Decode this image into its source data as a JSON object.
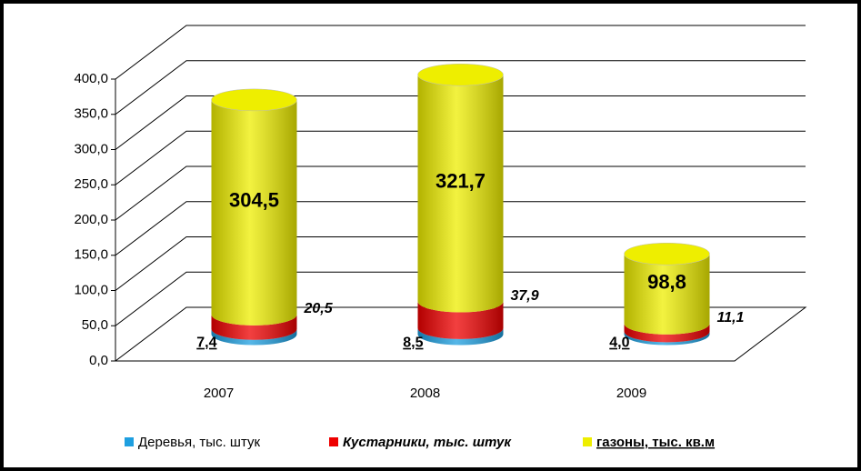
{
  "chart_data": {
    "type": "bar",
    "categories": [
      "2007",
      "2008",
      "2009"
    ],
    "series": [
      {
        "name": "Деревья, тыс. штук",
        "color": "#1e9fe0",
        "values": [
          7.4,
          8.5,
          4.0
        ],
        "value_labels": [
          "7,4",
          "8,5",
          "4,0"
        ]
      },
      {
        "name": "Кустарники, тыс. штук",
        "color": "#ee0000",
        "values": [
          20.5,
          37.9,
          11.1
        ],
        "value_labels": [
          "20,5",
          "37,9",
          "11,1"
        ]
      },
      {
        "name": "газоны, тыс. кв.м",
        "color": "#eeee00",
        "values": [
          304.5,
          321.7,
          98.8
        ],
        "value_labels": [
          "304,5",
          "321,7",
          "98,8"
        ]
      }
    ],
    "stacked": true,
    "ylim": [
      0,
      400
    ],
    "yticks": [
      {
        "value": 0,
        "label": "0,0"
      },
      {
        "value": 50,
        "label": "50,0"
      },
      {
        "value": 100,
        "label": "100,0"
      },
      {
        "value": 150,
        "label": "150,0"
      },
      {
        "value": 200,
        "label": "200,0"
      },
      {
        "value": 250,
        "label": "250,0"
      },
      {
        "value": 300,
        "label": "300,0"
      },
      {
        "value": 350,
        "label": "350,0"
      },
      {
        "value": 400,
        "label": "400,0"
      }
    ],
    "grid": true,
    "legend": "bottom"
  }
}
